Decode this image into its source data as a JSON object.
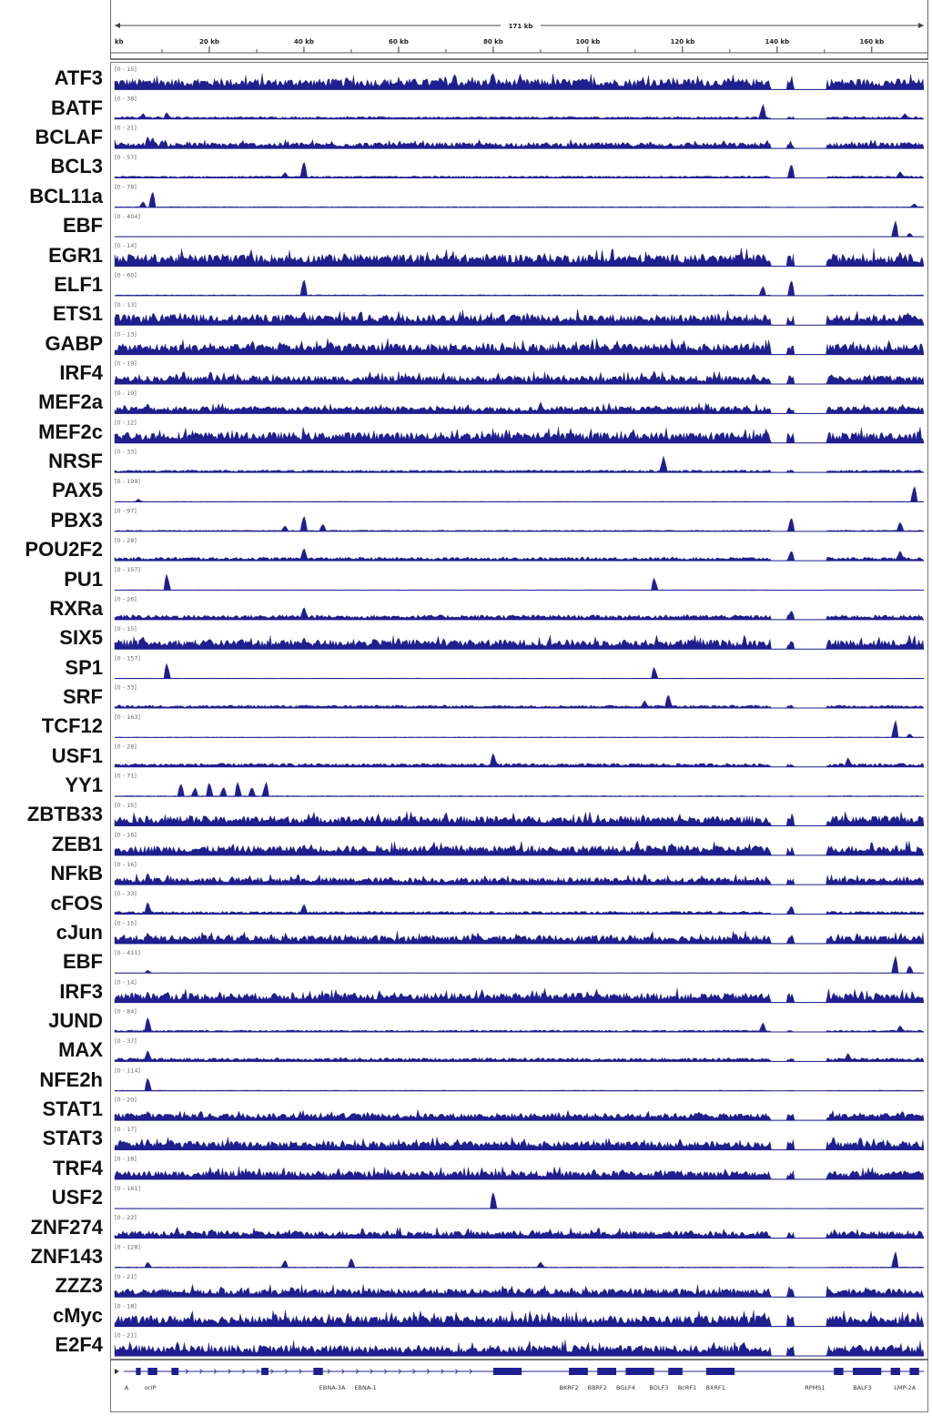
{
  "ruler": {
    "span_label": "171 kb",
    "first_tick_fragment": "kb",
    "ticks": [
      "20 kb",
      "40 kb",
      "60 kb",
      "80 kb",
      "100 kb",
      "120 kb",
      "140 kb",
      "160 kb"
    ]
  },
  "colors": {
    "signal": "#1f1f8f",
    "axis": "#666666",
    "background": "#ffffff"
  },
  "chart_data": {
    "type": "area",
    "description_type": "genome-browser-tracks",
    "x_unit": "kb",
    "xlim": [
      0,
      171
    ],
    "gap_kb": [
      [
        138.5,
        142
      ],
      [
        143.5,
        150.5
      ]
    ],
    "tracks": [
      {
        "name": "ATF3",
        "range": "[0 - 15]",
        "base": 0.45,
        "spikes": [
          [
            80,
            0.9
          ]
        ]
      },
      {
        "name": "BATF",
        "range": "[0 - 38]",
        "base": 0.1,
        "spikes": [
          [
            6,
            0.3
          ],
          [
            11,
            0.35
          ],
          [
            137,
            0.8
          ],
          [
            167,
            0.3
          ]
        ]
      },
      {
        "name": "BCLAF",
        "range": "[0 - 21]",
        "base": 0.25,
        "spikes": [
          [
            7,
            0.65
          ],
          [
            8,
            0.6
          ],
          [
            10,
            0.45
          ]
        ]
      },
      {
        "name": "BCL3",
        "range": "[0 - 57]",
        "base": 0.08,
        "spikes": [
          [
            36,
            0.3
          ],
          [
            40,
            0.9
          ],
          [
            143,
            0.75
          ],
          [
            166,
            0.35
          ]
        ]
      },
      {
        "name": "BCL11a",
        "range": "[0 - 78]",
        "base": 0.03,
        "spikes": [
          [
            6,
            0.3
          ],
          [
            8,
            0.85
          ],
          [
            169,
            0.2
          ]
        ]
      },
      {
        "name": "EBF",
        "range": "[0 - 404]",
        "base": 0.01,
        "spikes": [
          [
            165,
            0.85
          ],
          [
            168,
            0.2
          ]
        ]
      },
      {
        "name": "EGR1",
        "range": "[0 - 14]",
        "base": 0.5,
        "spikes": [
          [
            166,
            0.8
          ]
        ]
      },
      {
        "name": "ELF1",
        "range": "[0 - 60]",
        "base": 0.04,
        "spikes": [
          [
            40,
            0.9
          ],
          [
            137,
            0.5
          ],
          [
            143,
            0.85
          ]
        ]
      },
      {
        "name": "ETS1",
        "range": "[0 - 13]",
        "base": 0.45,
        "spikes": [
          [
            40,
            0.75
          ]
        ]
      },
      {
        "name": "GABP",
        "range": "[0 - 13]",
        "base": 0.45,
        "spikes": []
      },
      {
        "name": "IRF4",
        "range": "[0 - 19]",
        "base": 0.35,
        "spikes": [
          [
            114,
            0.7
          ]
        ]
      },
      {
        "name": "MEF2a",
        "range": "[0 - 19]",
        "base": 0.3,
        "spikes": [
          [
            7,
            0.55
          ],
          [
            90,
            0.6
          ]
        ]
      },
      {
        "name": "MEF2c",
        "range": "[0 - 12]",
        "base": 0.45,
        "spikes": []
      },
      {
        "name": "NRSF",
        "range": "[0 - 33]",
        "base": 0.1,
        "spikes": [
          [
            116,
            0.85
          ]
        ]
      },
      {
        "name": "PAX5",
        "range": "[0 - 199]",
        "base": 0.02,
        "spikes": [
          [
            5,
            0.15
          ],
          [
            169,
            0.85
          ]
        ]
      },
      {
        "name": "PBX3",
        "range": "[0 - 97]",
        "base": 0.05,
        "spikes": [
          [
            36,
            0.3
          ],
          [
            40,
            0.85
          ],
          [
            44,
            0.4
          ],
          [
            143,
            0.75
          ],
          [
            166,
            0.5
          ]
        ]
      },
      {
        "name": "POU2F2",
        "range": "[0 - 28]",
        "base": 0.15,
        "spikes": [
          [
            40,
            0.7
          ],
          [
            143,
            0.55
          ],
          [
            166,
            0.55
          ]
        ]
      },
      {
        "name": "PU1",
        "range": "[0 - 157]",
        "base": 0.02,
        "spikes": [
          [
            11,
            0.85
          ],
          [
            114,
            0.65
          ]
        ]
      },
      {
        "name": "RXRa",
        "range": "[0 - 26]",
        "base": 0.2,
        "spikes": [
          [
            40,
            0.7
          ],
          [
            143,
            0.5
          ]
        ]
      },
      {
        "name": "SIX5",
        "range": "[0 - 15]",
        "base": 0.4,
        "spikes": [
          [
            40,
            0.65
          ]
        ]
      },
      {
        "name": "SP1",
        "range": "[0 - 157]",
        "base": 0.02,
        "spikes": [
          [
            11,
            0.8
          ],
          [
            114,
            0.6
          ]
        ]
      },
      {
        "name": "SRF",
        "range": "[0 - 33]",
        "base": 0.12,
        "spikes": [
          [
            112,
            0.4
          ],
          [
            117,
            0.75
          ]
        ]
      },
      {
        "name": "TCF12",
        "range": "[0 - 163]",
        "base": 0.02,
        "spikes": [
          [
            165,
            0.9
          ],
          [
            168,
            0.2
          ]
        ]
      },
      {
        "name": "USF1",
        "range": "[0 - 28]",
        "base": 0.15,
        "spikes": [
          [
            80,
            0.75
          ],
          [
            155,
            0.5
          ]
        ]
      },
      {
        "name": "YY1",
        "range": "[0 - 71]",
        "base": 0.03,
        "spikes": [
          [
            14,
            0.7
          ],
          [
            17,
            0.45
          ],
          [
            20,
            0.75
          ],
          [
            23,
            0.5
          ],
          [
            26,
            0.75
          ],
          [
            29,
            0.5
          ],
          [
            32,
            0.75
          ]
        ]
      },
      {
        "name": "ZBTB33",
        "range": "[0 - 15]",
        "base": 0.4,
        "spikes": []
      },
      {
        "name": "ZEB1",
        "range": "[0 - 16]",
        "base": 0.4,
        "spikes": [
          [
            40,
            0.6
          ]
        ]
      },
      {
        "name": "NFkB",
        "range": "[0 - 16]",
        "base": 0.3,
        "spikes": [
          [
            7,
            0.65
          ]
        ]
      },
      {
        "name": "cFOS",
        "range": "[0 - 33]",
        "base": 0.12,
        "spikes": [
          [
            7,
            0.65
          ],
          [
            40,
            0.55
          ],
          [
            143,
            0.45
          ]
        ]
      },
      {
        "name": "cJun",
        "range": "[0 - 15]",
        "base": 0.35,
        "spikes": [
          [
            7,
            0.6
          ]
        ]
      },
      {
        "name": "EBF",
        "range": "[0 - 411]",
        "base": 0.01,
        "spikes": [
          [
            7,
            0.15
          ],
          [
            165,
            0.9
          ],
          [
            168,
            0.4
          ]
        ]
      },
      {
        "name": "IRF3",
        "range": "[0 - 14]",
        "base": 0.4,
        "spikes": [
          [
            7,
            0.6
          ]
        ]
      },
      {
        "name": "JUND",
        "range": "[0 - 84]",
        "base": 0.08,
        "spikes": [
          [
            7,
            0.8
          ],
          [
            137,
            0.5
          ],
          [
            166,
            0.35
          ]
        ]
      },
      {
        "name": "MAX",
        "range": "[0 - 37]",
        "base": 0.15,
        "spikes": [
          [
            7,
            0.6
          ],
          [
            155,
            0.45
          ]
        ]
      },
      {
        "name": "NFE2h",
        "range": "[0 - 114]",
        "base": 0.03,
        "spikes": [
          [
            7,
            0.7
          ]
        ]
      },
      {
        "name": "STAT1",
        "range": "[0 - 20]",
        "base": 0.3,
        "spikes": [
          [
            7,
            0.5
          ]
        ]
      },
      {
        "name": "STAT3",
        "range": "[0 - 17]",
        "base": 0.35,
        "spikes": [
          [
            7,
            0.6
          ]
        ]
      },
      {
        "name": "TRF4",
        "range": "[0 - 18]",
        "base": 0.35,
        "spikes": []
      },
      {
        "name": "USF2",
        "range": "[0 - 161]",
        "base": 0.02,
        "spikes": [
          [
            80,
            0.9
          ]
        ]
      },
      {
        "name": "ZNF274",
        "range": "[0 - 22]",
        "base": 0.3,
        "spikes": []
      },
      {
        "name": "ZNF143",
        "range": "[0 - 128]",
        "base": 0.03,
        "spikes": [
          [
            7,
            0.3
          ],
          [
            36,
            0.4
          ],
          [
            50,
            0.5
          ],
          [
            90,
            0.3
          ],
          [
            165,
            0.85
          ]
        ]
      },
      {
        "name": "ZZZ3",
        "range": "[0 - 21]",
        "base": 0.35,
        "spikes": []
      },
      {
        "name": "cMyc",
        "range": "[0 - 18]",
        "base": 0.45,
        "spikes": [
          [
            137,
            0.6
          ]
        ]
      },
      {
        "name": "E2F4",
        "range": "[0 - 21]",
        "base": 0.45,
        "spikes": []
      }
    ]
  },
  "genes": {
    "labels": [
      {
        "text": "A",
        "kb": 2.5
      },
      {
        "text": "oriP",
        "kb": 7.5
      },
      {
        "text": "EBNA-3A",
        "kb": 46
      },
      {
        "text": "EBNA-1",
        "kb": 53
      },
      {
        "text": "BKRF2",
        "kb": 96
      },
      {
        "text": "BBRF2",
        "kb": 102
      },
      {
        "text": "BGLF4",
        "kb": 108
      },
      {
        "text": "BDLF3",
        "kb": 115
      },
      {
        "text": "BcRF1",
        "kb": 121
      },
      {
        "text": "BXRF1",
        "kb": 127
      },
      {
        "text": "RPMS1",
        "kb": 148
      },
      {
        "text": "BALF3",
        "kb": 158
      },
      {
        "text": "LMP-2A",
        "kb": 167
      }
    ]
  }
}
